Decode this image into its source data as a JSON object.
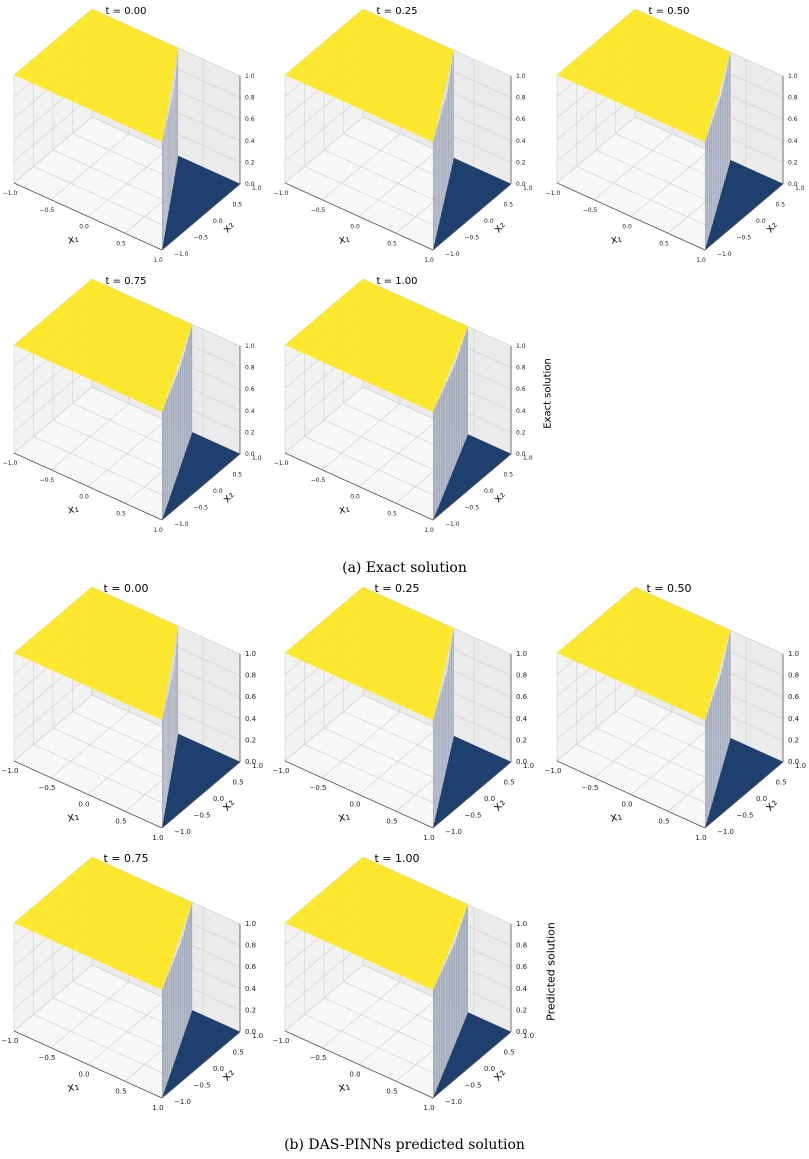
{
  "chart_data": [
    {
      "type": "surface3d",
      "group": "exact",
      "title": "t = 0.00",
      "t": 0.0,
      "front_z_bend": 0.76,
      "xlabel": "x₁",
      "ylabel": "x₂",
      "xlim": [
        -1.0,
        1.0
      ],
      "ylim": [
        -1.0,
        1.0
      ],
      "zlim": [
        0.0,
        1.0
      ],
      "xticks": [
        "−1.0",
        "−0.5",
        "0.0",
        "0.5",
        "1.0"
      ],
      "yticks": [
        "−1.0",
        "−0.5",
        "0.0",
        "0.5",
        "1.0"
      ],
      "zticks": [
        "0.0",
        "0.2",
        "0.4",
        "0.6",
        "0.8",
        "1.0"
      ],
      "colors": {
        "high": "#fde725",
        "low": "#1f3f6e",
        "wall": "#9aa4b6"
      }
    },
    {
      "type": "surface3d",
      "group": "exact",
      "title": "t = 0.25",
      "t": 0.25,
      "front_z_bend": 0.76,
      "xlabel": "x₁",
      "ylabel": "x₂",
      "xlim": [
        -1.0,
        1.0
      ],
      "ylim": [
        -1.0,
        1.0
      ],
      "zlim": [
        0.0,
        1.0
      ],
      "xticks": [
        "−1.0",
        "−0.5",
        "0.0",
        "0.5",
        "1.0"
      ],
      "yticks": [
        "−1.0",
        "−0.5",
        "0.0",
        "0.5",
        "1.0"
      ],
      "zticks": [
        "0.0",
        "0.2",
        "0.4",
        "0.6",
        "0.8",
        "1.0"
      ],
      "colors": {
        "high": "#fde725",
        "low": "#1f3f6e",
        "wall": "#9aa4b6"
      }
    },
    {
      "type": "surface3d",
      "group": "exact",
      "title": "t = 0.50",
      "t": 0.5,
      "front_z_bend": 0.76,
      "xlabel": "x₁",
      "ylabel": "x₂",
      "xlim": [
        -1.0,
        1.0
      ],
      "ylim": [
        -1.0,
        1.0
      ],
      "zlim": [
        0.0,
        1.0
      ],
      "xticks": [
        "−1.0",
        "−0.5",
        "0.0",
        "0.5",
        "1.0"
      ],
      "yticks": [
        "−1.0",
        "−0.5",
        "0.0",
        "0.5",
        "1.0"
      ],
      "zticks": [
        "0.0",
        "0.2",
        "0.4",
        "0.6",
        "0.8",
        "1.0"
      ],
      "colors": {
        "high": "#fde725",
        "low": "#1f3f6e",
        "wall": "#9aa4b6"
      }
    },
    {
      "type": "surface3d",
      "group": "exact",
      "title": "t = 0.75",
      "t": 0.75,
      "front_z_bend": 0.76,
      "xlabel": "x₁",
      "ylabel": "x₂",
      "xlim": [
        -1.0,
        1.0
      ],
      "ylim": [
        -1.0,
        1.0
      ],
      "zlim": [
        0.0,
        1.0
      ],
      "xticks": [
        "−1.0",
        "−0.5",
        "0.0",
        "0.5",
        "1.0"
      ],
      "yticks": [
        "−1.0",
        "−0.5",
        "0.0",
        "0.5",
        "1.0"
      ],
      "zticks": [
        "0.0",
        "0.2",
        "0.4",
        "0.6",
        "0.8",
        "1.0"
      ],
      "colors": {
        "high": "#fde725",
        "low": "#1f3f6e",
        "wall": "#9aa4b6"
      }
    },
    {
      "type": "surface3d",
      "group": "exact",
      "title": "t = 1.00",
      "t": 1.0,
      "front_z_bend": 0.76,
      "xlabel": "x₁",
      "ylabel": "x₂",
      "xlim": [
        -1.0,
        1.0
      ],
      "ylim": [
        -1.0,
        1.0
      ],
      "zlim": [
        0.0,
        1.0
      ],
      "xticks": [
        "−1.0",
        "−0.5",
        "0.0",
        "0.5",
        "1.0"
      ],
      "yticks": [
        "−1.0",
        "−0.5",
        "0.0",
        "0.5",
        "1.0"
      ],
      "zticks": [
        "0.0",
        "0.2",
        "0.4",
        "0.6",
        "0.8",
        "1.0"
      ],
      "colors": {
        "high": "#fde725",
        "low": "#1f3f6e",
        "wall": "#9aa4b6"
      }
    },
    {
      "type": "surface3d",
      "group": "predicted",
      "title": "t = 0.00",
      "t": 0.0,
      "front_z_bend": 0.76,
      "xlabel": "x₁",
      "ylabel": "x₂",
      "xlim": [
        -1.0,
        1.0
      ],
      "ylim": [
        -1.0,
        1.0
      ],
      "zlim": [
        0.0,
        1.0
      ],
      "xticks": [
        "−1.0",
        "−0.5",
        "0.0",
        "0.5",
        "1.0"
      ],
      "yticks": [
        "−1.0",
        "−0.5",
        "0.0",
        "0.5",
        "1.0"
      ],
      "zticks": [
        "0.0",
        "0.2",
        "0.4",
        "0.6",
        "0.8",
        "1.0"
      ],
      "colors": {
        "high": "#fde725",
        "low": "#1f3f6e",
        "wall": "#9aa4b6"
      }
    },
    {
      "type": "surface3d",
      "group": "predicted",
      "title": "t = 0.25",
      "t": 0.25,
      "front_z_bend": 0.76,
      "xlabel": "x₁",
      "ylabel": "x₂",
      "xlim": [
        -1.0,
        1.0
      ],
      "ylim": [
        -1.0,
        1.0
      ],
      "zlim": [
        0.0,
        1.0
      ],
      "xticks": [
        "−1.0",
        "−0.5",
        "0.0",
        "0.5",
        "1.0"
      ],
      "yticks": [
        "−1.0",
        "−0.5",
        "0.0",
        "0.5",
        "1.0"
      ],
      "zticks": [
        "0.0",
        "0.2",
        "0.4",
        "0.6",
        "0.8",
        "1.0"
      ],
      "colors": {
        "high": "#fde725",
        "low": "#1f3f6e",
        "wall": "#9aa4b6"
      }
    },
    {
      "type": "surface3d",
      "group": "predicted",
      "title": "t = 0.50",
      "t": 0.5,
      "front_z_bend": 0.76,
      "xlabel": "x₁",
      "ylabel": "x₂",
      "xlim": [
        -1.0,
        1.0
      ],
      "ylim": [
        -1.0,
        1.0
      ],
      "zlim": [
        0.0,
        1.0
      ],
      "xticks": [
        "−1.0",
        "−0.5",
        "0.0",
        "0.5",
        "1.0"
      ],
      "yticks": [
        "−1.0",
        "−0.5",
        "0.0",
        "0.5",
        "1.0"
      ],
      "zticks": [
        "0.0",
        "0.2",
        "0.4",
        "0.6",
        "0.8",
        "1.0"
      ],
      "colors": {
        "high": "#fde725",
        "low": "#1f3f6e",
        "wall": "#9aa4b6"
      }
    },
    {
      "type": "surface3d",
      "group": "predicted",
      "title": "t = 0.75",
      "t": 0.75,
      "front_z_bend": 0.76,
      "xlabel": "x₁",
      "ylabel": "x₂",
      "xlim": [
        -1.0,
        1.0
      ],
      "ylim": [
        -1.0,
        1.0
      ],
      "zlim": [
        0.0,
        1.0
      ],
      "xticks": [
        "−1.0",
        "−0.5",
        "0.0",
        "0.5",
        "1.0"
      ],
      "yticks": [
        "−1.0",
        "−0.5",
        "0.0",
        "0.5",
        "1.0"
      ],
      "zticks": [
        "0.0",
        "0.2",
        "0.4",
        "0.6",
        "0.8",
        "1.0"
      ],
      "colors": {
        "high": "#fde725",
        "low": "#1f3f6e",
        "wall": "#9aa4b6"
      }
    },
    {
      "type": "surface3d",
      "group": "predicted",
      "title": "t = 1.00",
      "t": 1.0,
      "front_z_bend": 0.76,
      "xlabel": "x₁",
      "ylabel": "x₂",
      "xlim": [
        -1.0,
        1.0
      ],
      "ylim": [
        -1.0,
        1.0
      ],
      "zlim": [
        0.0,
        1.0
      ],
      "xticks": [
        "−1.0",
        "−0.5",
        "0.0",
        "0.5",
        "1.0"
      ],
      "yticks": [
        "−1.0",
        "−0.5",
        "0.0",
        "0.5",
        "1.0"
      ],
      "zticks": [
        "0.0",
        "0.2",
        "0.4",
        "0.6",
        "0.8",
        "1.0"
      ],
      "colors": {
        "high": "#fde725",
        "low": "#1f3f6e",
        "wall": "#9aa4b6"
      }
    }
  ],
  "figure": {
    "exact_side_label": "Exact solution",
    "predicted_side_label": "Predicted solution",
    "caption_a": "(a) Exact solution",
    "caption_b": "(b) DAS-PINNs predicted solution"
  }
}
